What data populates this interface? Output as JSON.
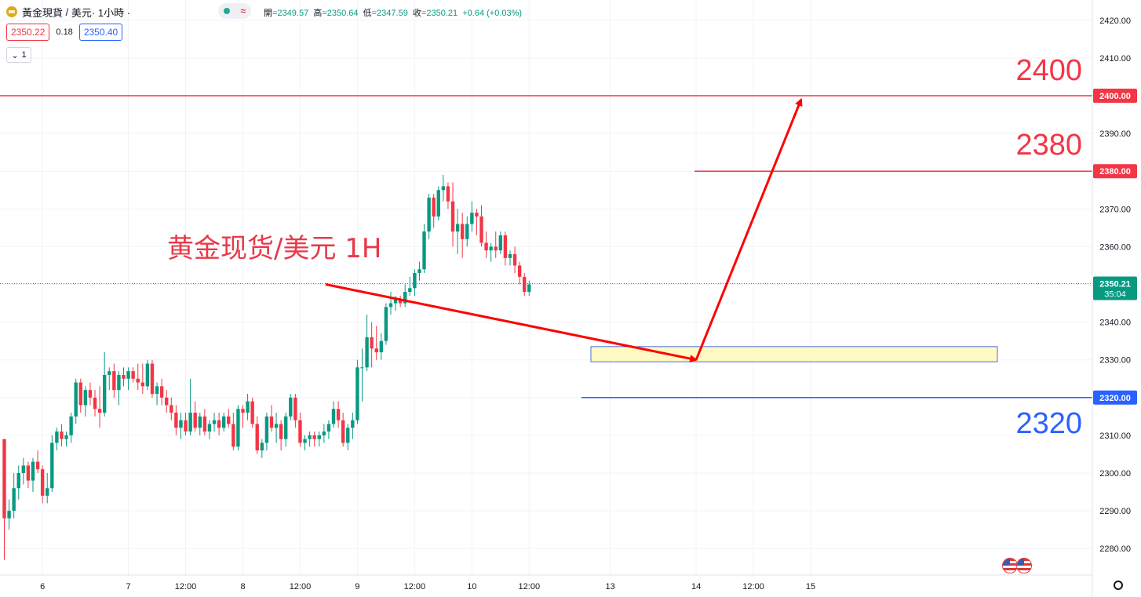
{
  "header": {
    "symbol": "黃金現貨",
    "separator": "/",
    "quote_currency": "美元",
    "interval": "· 1小時 ·",
    "ohlc": {
      "open_label": "開",
      "open": "=2349.57",
      "high_label": "高",
      "high": "=2350.64",
      "low_label": "低",
      "low": "=2347.59",
      "close_label": "收",
      "close": "=2350.21",
      "change": "+0.64 (+0.03%)"
    },
    "bid": "2350.22",
    "spread": "0.18",
    "ask": "2350.40",
    "studies_count": "1"
  },
  "chart_data": {
    "type": "candlestick",
    "title": "黄金现货/美元 1H",
    "y_axis": {
      "ticks": [
        "2420.00",
        "2410.00",
        "2400.00",
        "2390.00",
        "2380.00",
        "2370.00",
        "2360.00",
        "2350.00",
        "2340.00",
        "2330.00",
        "2320.00",
        "2310.00",
        "2300.00",
        "2290.00",
        "2280.00"
      ],
      "ylim": [
        2276,
        2424
      ]
    },
    "x_axis": {
      "ticks": [
        {
          "label": "6",
          "bar": 8
        },
        {
          "label": "7",
          "bar": 26
        },
        {
          "label": "12:00",
          "bar": 38
        },
        {
          "label": "8",
          "bar": 50
        },
        {
          "label": "12:00",
          "bar": 62
        },
        {
          "label": "9",
          "bar": 74
        },
        {
          "label": "12:00",
          "bar": 86
        },
        {
          "label": "10",
          "bar": 98
        },
        {
          "label": "12:00",
          "bar": 110
        },
        {
          "label": "13",
          "bar": 127
        },
        {
          "label": "14",
          "bar": 145
        },
        {
          "label": "12:00",
          "bar": 157
        },
        {
          "label": "15",
          "bar": 169
        }
      ]
    },
    "bar_spacing_note": "one candle per hour",
    "candles": [
      [
        2309,
        2309,
        2277,
        2288
      ],
      [
        2288,
        2293,
        2285,
        2290
      ],
      [
        2290,
        2300,
        2288,
        2296
      ],
      [
        2296,
        2302,
        2293,
        2300
      ],
      [
        2300,
        2304,
        2297,
        2302
      ],
      [
        2302,
        2303,
        2296,
        2298
      ],
      [
        2298,
        2304,
        2295,
        2303
      ],
      [
        2303,
        2306,
        2300,
        2301
      ],
      [
        2301,
        2302,
        2292,
        2294
      ],
      [
        2294,
        2300,
        2292,
        2296
      ],
      [
        2296,
        2310,
        2295,
        2308
      ],
      [
        2308,
        2312,
        2306,
        2311
      ],
      [
        2311,
        2313,
        2307,
        2309
      ],
      [
        2309,
        2311,
        2307,
        2310
      ],
      [
        2310,
        2316,
        2308,
        2315
      ],
      [
        2315,
        2325,
        2313,
        2324
      ],
      [
        2324,
        2325,
        2316,
        2318
      ],
      [
        2318,
        2323,
        2315,
        2322
      ],
      [
        2322,
        2324,
        2318,
        2320
      ],
      [
        2320,
        2322,
        2315,
        2317
      ],
      [
        2317,
        2323,
        2312,
        2316
      ],
      [
        2316,
        2332,
        2315,
        2326
      ],
      [
        2326,
        2328,
        2322,
        2327
      ],
      [
        2327,
        2329,
        2320,
        2322
      ],
      [
        2322,
        2327,
        2318,
        2326
      ],
      [
        2326,
        2328,
        2323,
        2325
      ],
      [
        2325,
        2328,
        2322,
        2327
      ],
      [
        2327,
        2328,
        2324,
        2325
      ],
      [
        2325,
        2329,
        2322,
        2324
      ],
      [
        2324,
        2329,
        2321,
        2323
      ],
      [
        2323,
        2330,
        2322,
        2329
      ],
      [
        2329,
        2330,
        2320,
        2321
      ],
      [
        2321,
        2324,
        2318,
        2323
      ],
      [
        2323,
        2325,
        2318,
        2320
      ],
      [
        2320,
        2322,
        2316,
        2318
      ],
      [
        2318,
        2320,
        2314,
        2316
      ],
      [
        2316,
        2318,
        2310,
        2312
      ],
      [
        2312,
        2316,
        2309,
        2314
      ],
      [
        2314,
        2316,
        2310,
        2311
      ],
      [
        2311,
        2325,
        2310,
        2316
      ],
      [
        2316,
        2319,
        2311,
        2312
      ],
      [
        2312,
        2316,
        2310,
        2315
      ],
      [
        2315,
        2317,
        2310,
        2311
      ],
      [
        2311,
        2314,
        2309,
        2313
      ],
      [
        2313,
        2316,
        2311,
        2314
      ],
      [
        2314,
        2316,
        2310,
        2312
      ],
      [
        2312,
        2316,
        2311,
        2315
      ],
      [
        2315,
        2317,
        2312,
        2313
      ],
      [
        2313,
        2316,
        2306,
        2307
      ],
      [
        2307,
        2318,
        2306,
        2317
      ],
      [
        2317,
        2318,
        2312,
        2316
      ],
      [
        2316,
        2321,
        2314,
        2319
      ],
      [
        2319,
        2320,
        2312,
        2313
      ],
      [
        2313,
        2315,
        2305,
        2306
      ],
      [
        2306,
        2309,
        2304,
        2308
      ],
      [
        2308,
        2316,
        2306,
        2315
      ],
      [
        2315,
        2318,
        2311,
        2312
      ],
      [
        2312,
        2316,
        2308,
        2313
      ],
      [
        2313,
        2314,
        2306,
        2309
      ],
      [
        2309,
        2316,
        2307,
        2315
      ],
      [
        2315,
        2321,
        2314,
        2320
      ],
      [
        2320,
        2321,
        2312,
        2314
      ],
      [
        2314,
        2316,
        2307,
        2308
      ],
      [
        2308,
        2310,
        2306,
        2309
      ],
      [
        2309,
        2311,
        2307,
        2310
      ],
      [
        2310,
        2311,
        2307,
        2309
      ],
      [
        2309,
        2311,
        2307,
        2310
      ],
      [
        2310,
        2313,
        2308,
        2311
      ],
      [
        2311,
        2314,
        2309,
        2313
      ],
      [
        2313,
        2319,
        2312,
        2317
      ],
      [
        2317,
        2319,
        2312,
        2314
      ],
      [
        2314,
        2316,
        2307,
        2308
      ],
      [
        2308,
        2313,
        2306,
        2312
      ],
      [
        2312,
        2316,
        2309,
        2314
      ],
      [
        2314,
        2330,
        2313,
        2328
      ],
      [
        2328,
        2333,
        2319,
        2328
      ],
      [
        2328,
        2342,
        2327,
        2336
      ],
      [
        2336,
        2340,
        2328,
        2333
      ],
      [
        2333,
        2339,
        2330,
        2332
      ],
      [
        2332,
        2337,
        2330,
        2335
      ],
      [
        2335,
        2345,
        2334,
        2344
      ],
      [
        2344,
        2348,
        2342,
        2345
      ],
      [
        2345,
        2347,
        2343,
        2346
      ],
      [
        2346,
        2347,
        2344,
        2345
      ],
      [
        2345,
        2350,
        2344,
        2348
      ],
      [
        2348,
        2352,
        2347,
        2349
      ],
      [
        2349,
        2354,
        2347,
        2353
      ],
      [
        2353,
        2356,
        2351,
        2354
      ],
      [
        2354,
        2366,
        2353,
        2364
      ],
      [
        2364,
        2374,
        2362,
        2373
      ],
      [
        2373,
        2374,
        2365,
        2368
      ],
      [
        2368,
        2376,
        2367,
        2375
      ],
      [
        2375,
        2379,
        2372,
        2376
      ],
      [
        2376,
        2377,
        2370,
        2372
      ],
      [
        2372,
        2377,
        2360,
        2364
      ],
      [
        2364,
        2370,
        2358,
        2366
      ],
      [
        2366,
        2369,
        2357,
        2362
      ],
      [
        2362,
        2368,
        2360,
        2366
      ],
      [
        2366,
        2372,
        2364,
        2369
      ],
      [
        2369,
        2370,
        2363,
        2368
      ],
      [
        2368,
        2371,
        2360,
        2361
      ],
      [
        2361,
        2364,
        2357,
        2359
      ],
      [
        2359,
        2361,
        2356,
        2360
      ],
      [
        2360,
        2364,
        2357,
        2359
      ],
      [
        2359,
        2364,
        2358,
        2363
      ],
      [
        2363,
        2364,
        2355,
        2357
      ],
      [
        2357,
        2359,
        2355,
        2358
      ],
      [
        2358,
        2360,
        2353,
        2355
      ],
      [
        2355,
        2356,
        2350,
        2352
      ],
      [
        2352,
        2353,
        2347,
        2348
      ],
      [
        2348,
        2351,
        2347,
        2350
      ]
    ],
    "annotations": {
      "levels": [
        {
          "label": "2400",
          "axis_label": "2400.00",
          "value": 2400,
          "color": "#f23645"
        },
        {
          "label": "2380",
          "axis_label": "2380.00",
          "value": 2380,
          "color": "#f23645"
        },
        {
          "label": "2320",
          "axis_label": "2320.00",
          "value": 2320,
          "color": "#2962ff"
        }
      ],
      "last_price": {
        "value": 2350.21,
        "label": "2350.21",
        "countdown": "35:04",
        "color": "#089981"
      },
      "zone": {
        "from": 2329.5,
        "to": 2333.5,
        "color": "#fff9c4"
      },
      "arrows": [
        {
          "from": [
            107,
            2350
          ],
          "to": [
            145,
            2330
          ],
          "color": "#ff0000"
        },
        {
          "from": [
            145,
            2330
          ],
          "to": [
            167,
            2399
          ],
          "color": "#ff0000"
        }
      ]
    },
    "colors": {
      "up": "#089981",
      "down": "#f23645",
      "grid": "#f0f3fa",
      "axis_text": "#131722"
    }
  }
}
